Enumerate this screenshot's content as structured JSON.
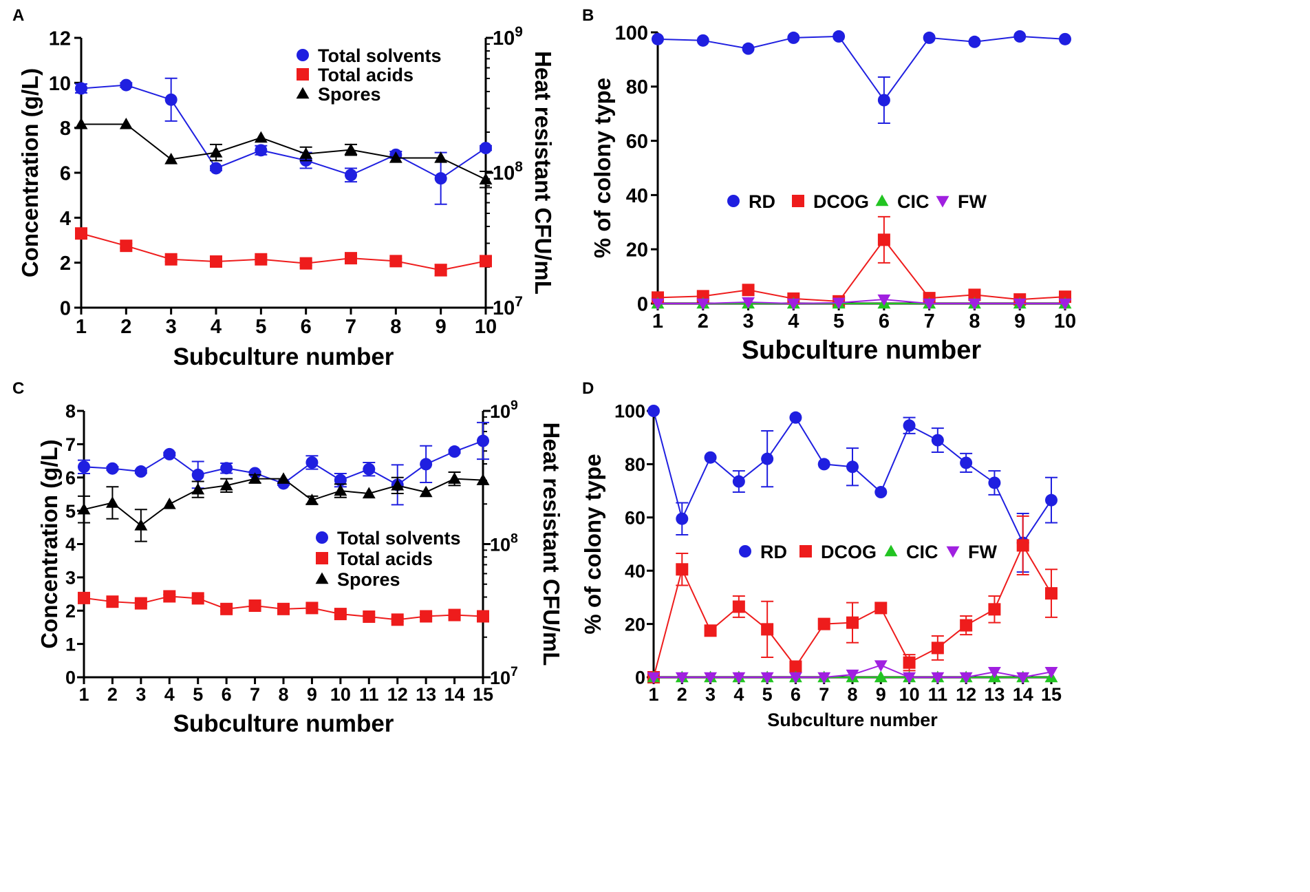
{
  "colors": {
    "blue": "#1f1fe0",
    "red": "#ee1c1c",
    "green": "#22c422",
    "purple": "#a020e0",
    "black": "#000000"
  },
  "chart_data": [
    {
      "panel": "A",
      "type": "line",
      "xlabel": "Subculture number",
      "ylabel": "Concentration (g/L)",
      "y2label": "Heat resistant CFU/mL",
      "x": [
        1,
        2,
        3,
        4,
        5,
        6,
        7,
        8,
        9,
        10
      ],
      "ylim": [
        0,
        12
      ],
      "yticks": [
        "0",
        "2",
        "4",
        "6",
        "8",
        "10",
        "12"
      ],
      "y2ticks": [
        {
          "base": "10",
          "exp": "7"
        },
        {
          "base": "10",
          "exp": "8"
        },
        {
          "base": "10",
          "exp": "9"
        }
      ],
      "y2lim": [
        7,
        9
      ],
      "legend_position": "top-center",
      "series": [
        {
          "name": "Total solvents",
          "axis": "left",
          "marker": "circle",
          "color": "blue",
          "values": [
            9.75,
            9.9,
            9.25,
            6.2,
            7.0,
            6.55,
            5.9,
            6.8,
            5.75,
            7.1
          ],
          "errors": [
            0.2,
            0.1,
            0.95,
            0.1,
            0.2,
            0.35,
            0.3,
            0.15,
            1.15,
            0.1
          ]
        },
        {
          "name": "Total acids",
          "axis": "left",
          "marker": "square",
          "color": "red",
          "values": [
            3.3,
            2.75,
            2.15,
            2.05,
            2.15,
            1.97,
            2.2,
            2.07,
            1.67,
            2.07
          ],
          "errors": [
            0.1,
            0.1,
            0.1,
            0.05,
            0.1,
            0.1,
            0.1,
            0.1,
            0.25,
            0.1
          ]
        },
        {
          "name": "Spores",
          "axis": "right",
          "marker": "triangle",
          "color": "black",
          "values": [
            8.36,
            8.36,
            8.1,
            8.15,
            8.26,
            8.14,
            8.17,
            8.11,
            8.11,
            7.95
          ],
          "errors": [
            0,
            0,
            0,
            0.06,
            0,
            0.05,
            0.04,
            0,
            0,
            0.06
          ]
        }
      ]
    },
    {
      "panel": "B",
      "type": "line",
      "xlabel": "Subculture number",
      "ylabel": "% of colony type",
      "x": [
        1,
        2,
        3,
        4,
        5,
        6,
        7,
        8,
        9,
        10
      ],
      "ylim": [
        0,
        100
      ],
      "yticks": [
        "0",
        "20",
        "40",
        "60",
        "80",
        "100"
      ],
      "legend_position": "center",
      "series": [
        {
          "name": "RD",
          "marker": "circle",
          "color": "blue",
          "values": [
            97.5,
            97,
            94,
            98,
            98.5,
            75,
            98,
            96.5,
            98.5,
            97.5
          ],
          "errors": [
            0,
            0,
            0,
            0,
            0,
            8.5,
            0,
            0,
            0,
            0
          ]
        },
        {
          "name": "DCOG",
          "marker": "square",
          "color": "red",
          "values": [
            2.2,
            2.7,
            5,
            1.8,
            0.8,
            23.5,
            2,
            3.2,
            1.5,
            2.5
          ],
          "errors": [
            0,
            0,
            0,
            0,
            0,
            8.5,
            0,
            0,
            0,
            0
          ]
        },
        {
          "name": "CIC",
          "marker": "triangle",
          "color": "green",
          "values": [
            0,
            0,
            0,
            0,
            0,
            0,
            0,
            0,
            0,
            0
          ],
          "errors": [
            0,
            0,
            0,
            0,
            0,
            0,
            0,
            0,
            0,
            0
          ]
        },
        {
          "name": "FW",
          "marker": "triangle-down",
          "color": "purple",
          "values": [
            0,
            0,
            0.5,
            0,
            0.3,
            1.5,
            0,
            0,
            0,
            0
          ],
          "errors": [
            0,
            0,
            0,
            0,
            0,
            0,
            0,
            0,
            0,
            0
          ]
        }
      ]
    },
    {
      "panel": "C",
      "type": "line",
      "xlabel": "Subculture number",
      "ylabel": "Concentration (g/L)",
      "y2label": "Heat resistant CFU/mL",
      "x": [
        1,
        2,
        3,
        4,
        5,
        6,
        7,
        8,
        9,
        10,
        11,
        12,
        13,
        14,
        15
      ],
      "ylim": [
        0,
        8
      ],
      "yticks": [
        "0",
        "1",
        "2",
        "3",
        "4",
        "5",
        "6",
        "7",
        "8"
      ],
      "y2ticks": [
        {
          "base": "10",
          "exp": "7"
        },
        {
          "base": "10",
          "exp": "8"
        },
        {
          "base": "10",
          "exp": "9"
        }
      ],
      "y2lim": [
        7,
        9
      ],
      "legend_position": "center",
      "series": [
        {
          "name": "Total solvents",
          "axis": "left",
          "marker": "circle",
          "color": "blue",
          "values": [
            6.32,
            6.27,
            6.18,
            6.7,
            6.08,
            6.28,
            6.13,
            5.82,
            6.45,
            5.92,
            6.25,
            5.78,
            6.4,
            6.78,
            7.1
          ],
          "errors": [
            0.2,
            0.05,
            0.05,
            0.05,
            0.4,
            0.15,
            0.05,
            0.05,
            0.2,
            0.2,
            0.2,
            0.6,
            0.55,
            0.05,
            0.55
          ]
        },
        {
          "name": "Total acids",
          "axis": "left",
          "marker": "square",
          "color": "red",
          "values": [
            2.38,
            2.27,
            2.22,
            2.43,
            2.37,
            2.05,
            2.15,
            2.05,
            2.08,
            1.9,
            1.82,
            1.73,
            1.83,
            1.87,
            1.83
          ],
          "errors": [
            0.05,
            0.05,
            0.05,
            0.05,
            0.05,
            0.05,
            0.05,
            0.05,
            0.05,
            0.05,
            0.05,
            0.05,
            0.05,
            0.05,
            0.15
          ]
        },
        {
          "name": "Spores",
          "axis": "right",
          "marker": "triangle",
          "color": "black",
          "values": [
            8.26,
            8.31,
            8.14,
            8.3,
            8.41,
            8.44,
            8.49,
            8.49,
            8.33,
            8.4,
            8.38,
            8.44,
            8.39,
            8.49,
            8.48
          ],
          "errors": [
            0.1,
            0.12,
            0.12,
            0,
            0.06,
            0.05,
            0.03,
            0,
            0.03,
            0.05,
            0,
            0.06,
            0,
            0.05,
            0
          ]
        }
      ]
    },
    {
      "panel": "D",
      "type": "line",
      "xlabel": "Subculture number",
      "ylabel": "% of colony type",
      "x": [
        1,
        2,
        3,
        4,
        5,
        6,
        7,
        8,
        9,
        10,
        11,
        12,
        13,
        14,
        15
      ],
      "ylim": [
        0,
        100
      ],
      "yticks": [
        "0",
        "20",
        "40",
        "60",
        "80",
        "100"
      ],
      "legend_position": "center",
      "series": [
        {
          "name": "RD",
          "marker": "circle",
          "color": "blue",
          "values": [
            100,
            59.5,
            82.5,
            73.5,
            82,
            97.5,
            80,
            79,
            69.5,
            94.5,
            89,
            80.5,
            73,
            50.5,
            66.5
          ],
          "errors": [
            0,
            6,
            0,
            4,
            10.5,
            0,
            0,
            7,
            0,
            3,
            4.5,
            3.5,
            4.5,
            11,
            8.5
          ]
        },
        {
          "name": "DCOG",
          "marker": "square",
          "color": "red",
          "values": [
            0,
            40.5,
            17.5,
            26.5,
            18,
            4,
            20,
            20.5,
            26,
            5.5,
            11,
            19.5,
            25.5,
            49.5,
            31.5
          ],
          "errors": [
            0,
            6,
            0,
            4,
            10.5,
            0,
            0,
            7.5,
            0,
            3,
            4.5,
            3.5,
            5,
            11,
            9
          ]
        },
        {
          "name": "CIC",
          "marker": "triangle",
          "color": "green",
          "values": [
            0,
            0,
            0,
            0,
            0,
            0,
            0,
            0,
            0,
            0,
            0,
            0,
            0,
            0,
            0
          ],
          "errors": [
            0,
            0,
            0,
            0,
            0,
            0,
            0,
            0,
            0,
            0,
            0,
            0,
            0,
            0,
            0
          ]
        },
        {
          "name": "FW",
          "marker": "triangle-down",
          "color": "purple",
          "values": [
            0,
            0,
            0,
            0,
            0,
            0,
            0,
            1,
            4.5,
            0,
            0,
            0,
            2,
            0,
            2
          ],
          "errors": [
            0,
            0,
            0,
            0,
            0,
            0,
            0,
            0,
            0,
            0,
            0,
            0,
            0,
            0,
            0
          ]
        }
      ]
    }
  ]
}
